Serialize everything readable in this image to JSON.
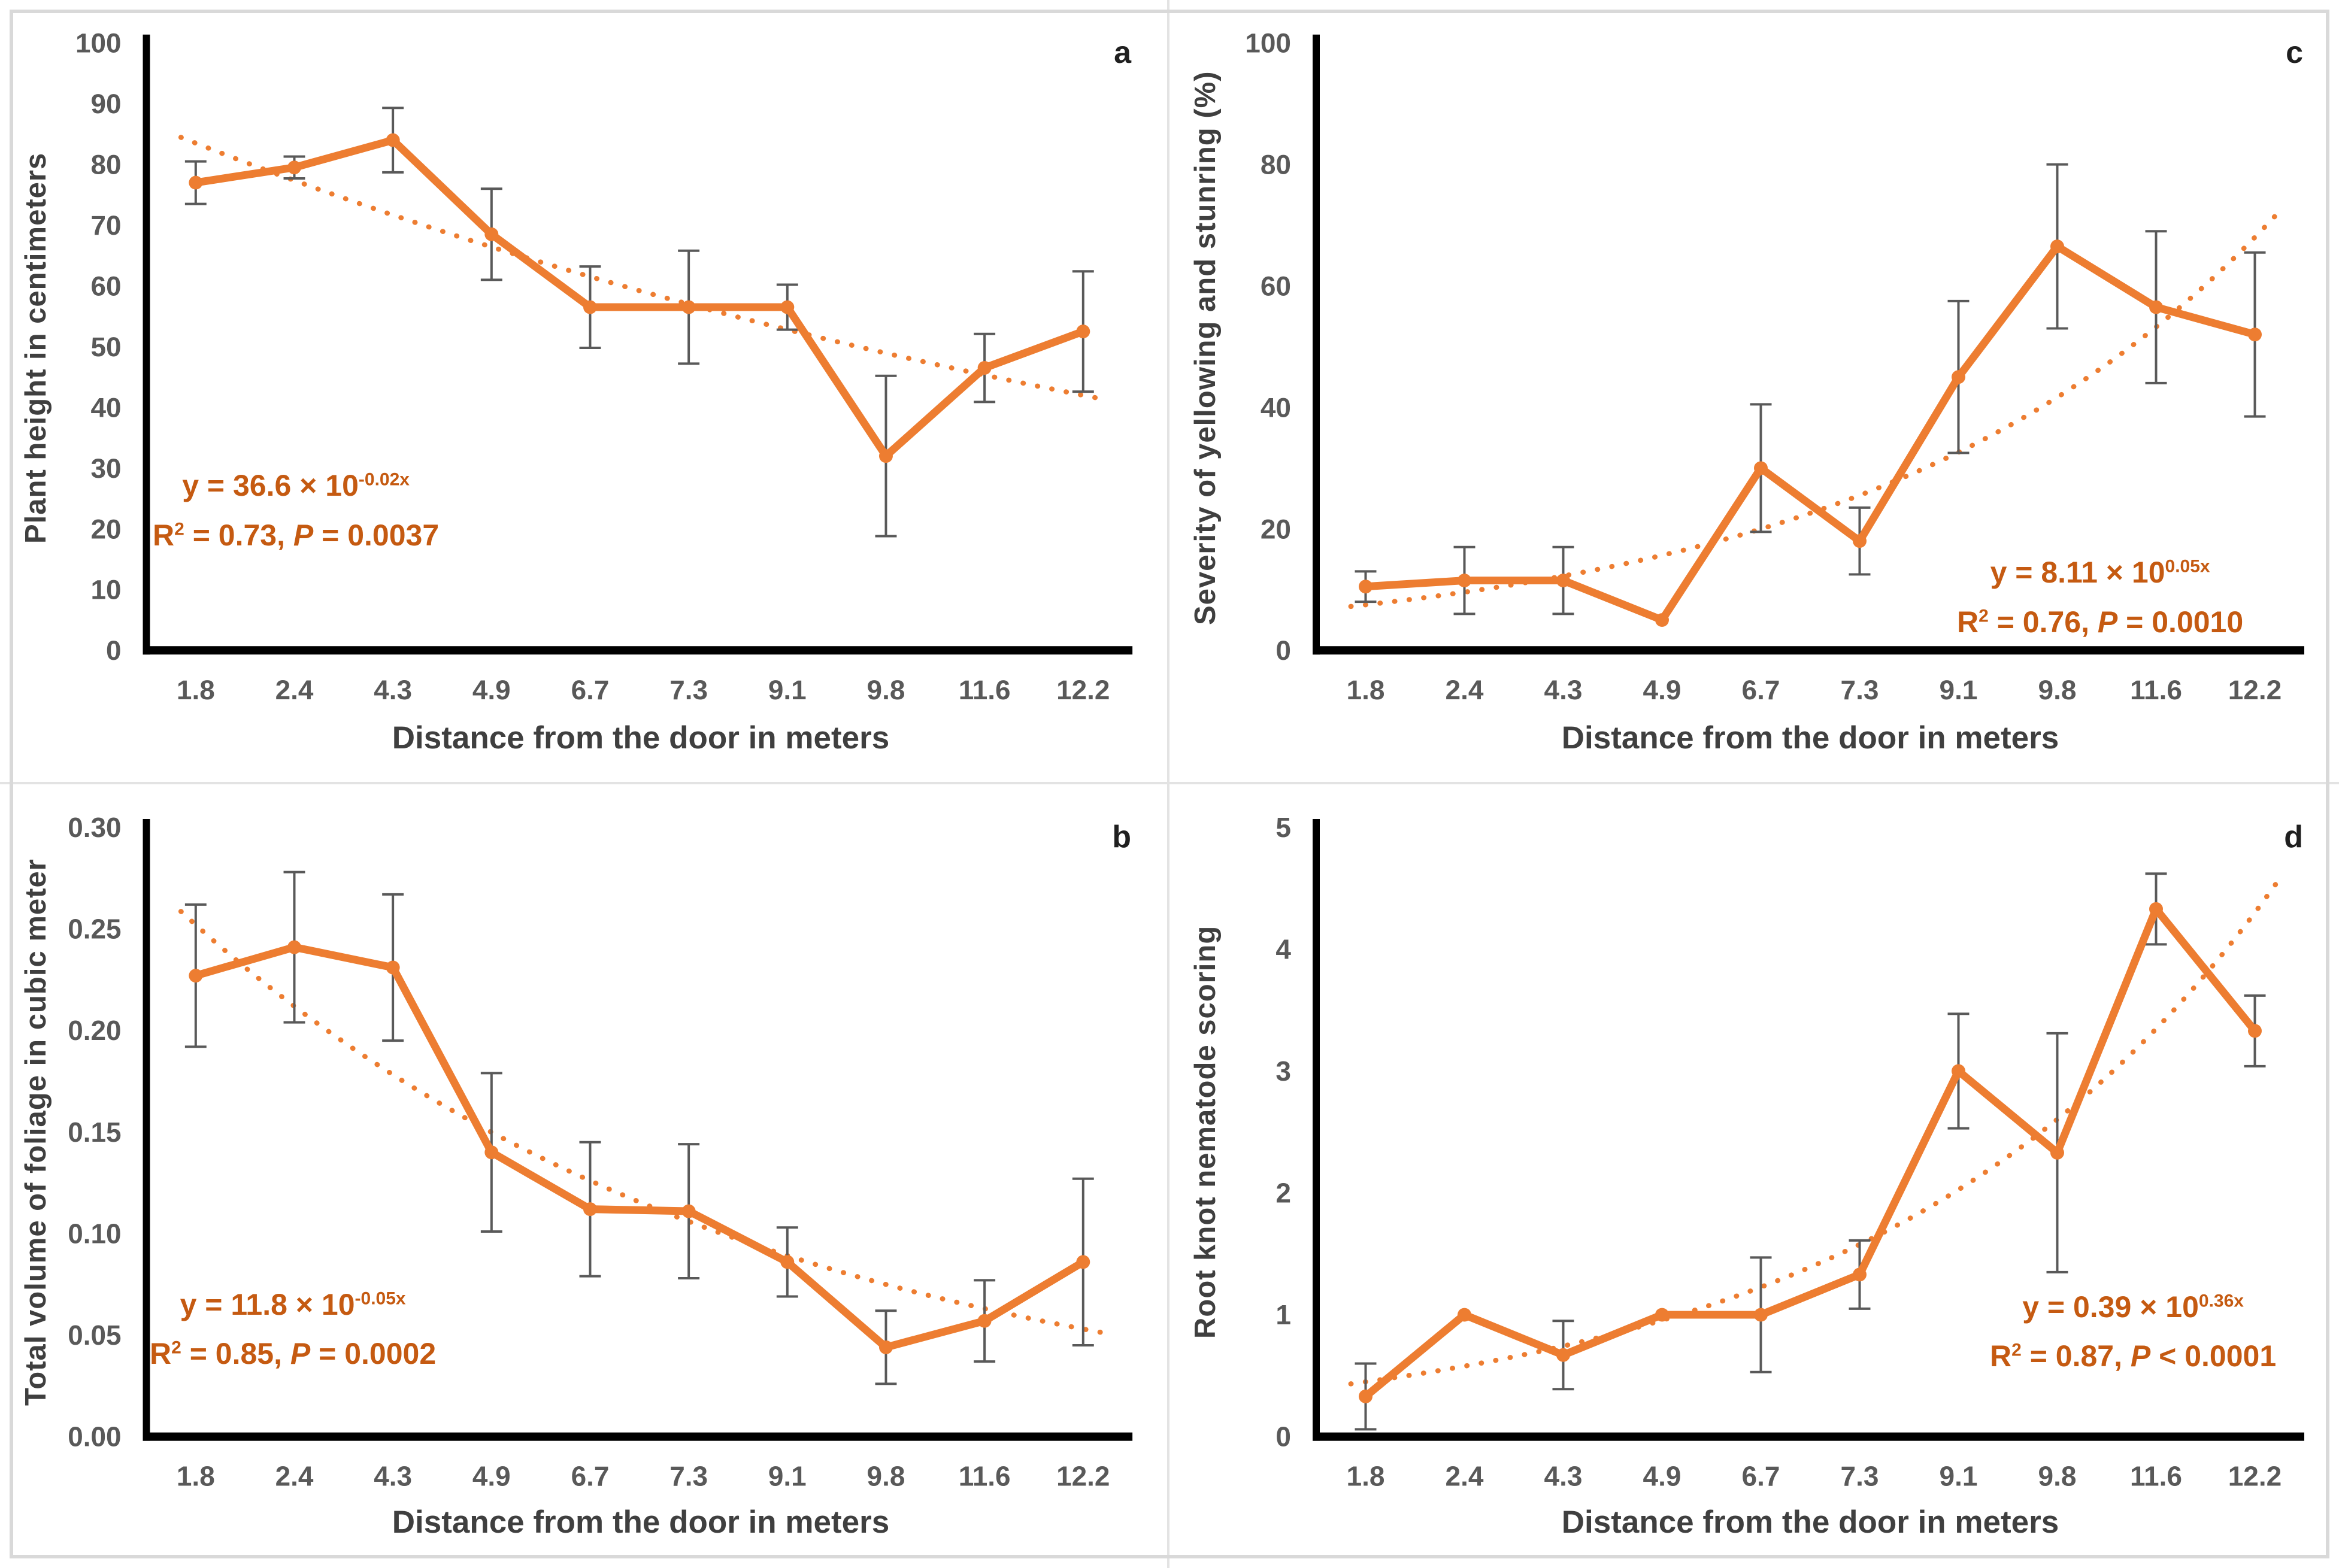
{
  "colors": {
    "series_line": "#ED7D31",
    "trend_line": "#ED7D31",
    "error_bar": "#595959",
    "axis_line": "#000000",
    "tick_text": "#595959",
    "axis_title_text": "#3f3f3f",
    "equation_text": "#c55a11"
  },
  "chart_data": [
    {
      "panel_letter": "a",
      "type": "line",
      "xlabel": "Distance from the door in meters",
      "ylabel": "Plant height in centimeters",
      "categories": [
        "1.8",
        "2.4",
        "4.3",
        "4.9",
        "6.7",
        "7.3",
        "9.1",
        "9.8",
        "11.6",
        "12.2"
      ],
      "values": [
        77,
        79.5,
        84,
        68.5,
        56.5,
        56.5,
        56.5,
        32,
        46.5,
        52.5
      ],
      "errors": [
        3.5,
        1.8,
        5.3,
        7.5,
        6.7,
        9.3,
        3.7,
        13.2,
        5.6,
        9.9
      ],
      "trend": {
        "shape": "exponential",
        "y_start": 83.5,
        "y_end": 42
      },
      "ylim": [
        0,
        100
      ],
      "ytick_step": 10,
      "ytick_decimals": 0,
      "grid": false,
      "legend": null,
      "equation": {
        "lhs": "y = 36.6 × 10",
        "exponent": "-0.02x",
        "r_label": "R",
        "r_sup": "2",
        "r_value": " = 0.73, ",
        "p_label": "P",
        "p_value": " = 0.0037"
      }
    },
    {
      "panel_letter": "c",
      "type": "line",
      "xlabel": "Distance from the door in meters",
      "ylabel": "Severity of yellowing and stunring (%)",
      "categories": [
        "1.8",
        "2.4",
        "4.3",
        "4.9",
        "6.7",
        "7.3",
        "9.1",
        "9.8",
        "11.6",
        "12.2"
      ],
      "values": [
        10.5,
        11.5,
        11.5,
        5,
        30,
        18,
        45,
        66.5,
        56.5,
        52
      ],
      "errors": [
        2.5,
        5.5,
        5.5,
        0,
        10.5,
        5.5,
        12.5,
        13.5,
        12.5,
        13.5
      ],
      "trend": {
        "shape": "exponential",
        "y_start": 7.5,
        "y_end": 68
      },
      "ylim": [
        0,
        100
      ],
      "ytick_step": 20,
      "ytick_decimals": 0,
      "grid": false,
      "legend": null,
      "equation": {
        "lhs": "y = 8.11 × 10",
        "exponent": "0.05x",
        "r_label": "R",
        "r_sup": "2",
        "r_value": " = 0.76, ",
        "p_label": "P",
        "p_value": " = 0.0010"
      }
    },
    {
      "panel_letter": "b",
      "type": "line",
      "xlabel": "Distance from the door in meters",
      "ylabel": "Total volume of foliage in cubic meter",
      "categories": [
        "1.8",
        "2.4",
        "4.3",
        "4.9",
        "6.7",
        "7.3",
        "9.1",
        "9.8",
        "11.6",
        "12.2"
      ],
      "values": [
        0.227,
        0.241,
        0.231,
        0.14,
        0.112,
        0.111,
        0.086,
        0.044,
        0.057,
        0.086
      ],
      "errors": [
        0.035,
        0.037,
        0.036,
        0.039,
        0.033,
        0.033,
        0.017,
        0.018,
        0.02,
        0.041
      ],
      "trend": {
        "shape": "exponential",
        "y_start": 0.252,
        "y_end": 0.053
      },
      "ylim": [
        0,
        0.3
      ],
      "ytick_step": 0.05,
      "ytick_decimals": 2,
      "grid": false,
      "legend": null,
      "equation": {
        "lhs": "y = 11.8 × 10",
        "exponent": "-0.05x",
        "r_label": "R",
        "r_sup": "2",
        "r_value": " = 0.85, ",
        "p_label": "P",
        "p_value": " = 0.0002"
      }
    },
    {
      "panel_letter": "d",
      "type": "line",
      "xlabel": "Distance from the door in meters",
      "ylabel": "Root knot nematode scoring",
      "categories": [
        "1.8",
        "2.4",
        "4.3",
        "4.9",
        "6.7",
        "7.3",
        "9.1",
        "9.8",
        "11.6",
        "12.2"
      ],
      "values": [
        0.33,
        1.0,
        0.67,
        1.0,
        1.0,
        1.33,
        3.0,
        2.33,
        4.33,
        3.33
      ],
      "errors": [
        0.27,
        0,
        0.28,
        0,
        0.47,
        0.28,
        0.47,
        0.98,
        0.29,
        0.29
      ],
      "trend": {
        "shape": "exponential",
        "y_start": 0.45,
        "y_end": 4.3
      },
      "ylim": [
        0,
        5
      ],
      "ytick_step": 1,
      "ytick_decimals": 0,
      "grid": false,
      "legend": null,
      "equation": {
        "lhs": "y = 0.39 × 10",
        "exponent": "0.36x",
        "r_label": "R",
        "r_sup": "2",
        "r_value": " = 0.87, ",
        "p_label": "P",
        "p_value": " < 0.0001"
      }
    }
  ]
}
